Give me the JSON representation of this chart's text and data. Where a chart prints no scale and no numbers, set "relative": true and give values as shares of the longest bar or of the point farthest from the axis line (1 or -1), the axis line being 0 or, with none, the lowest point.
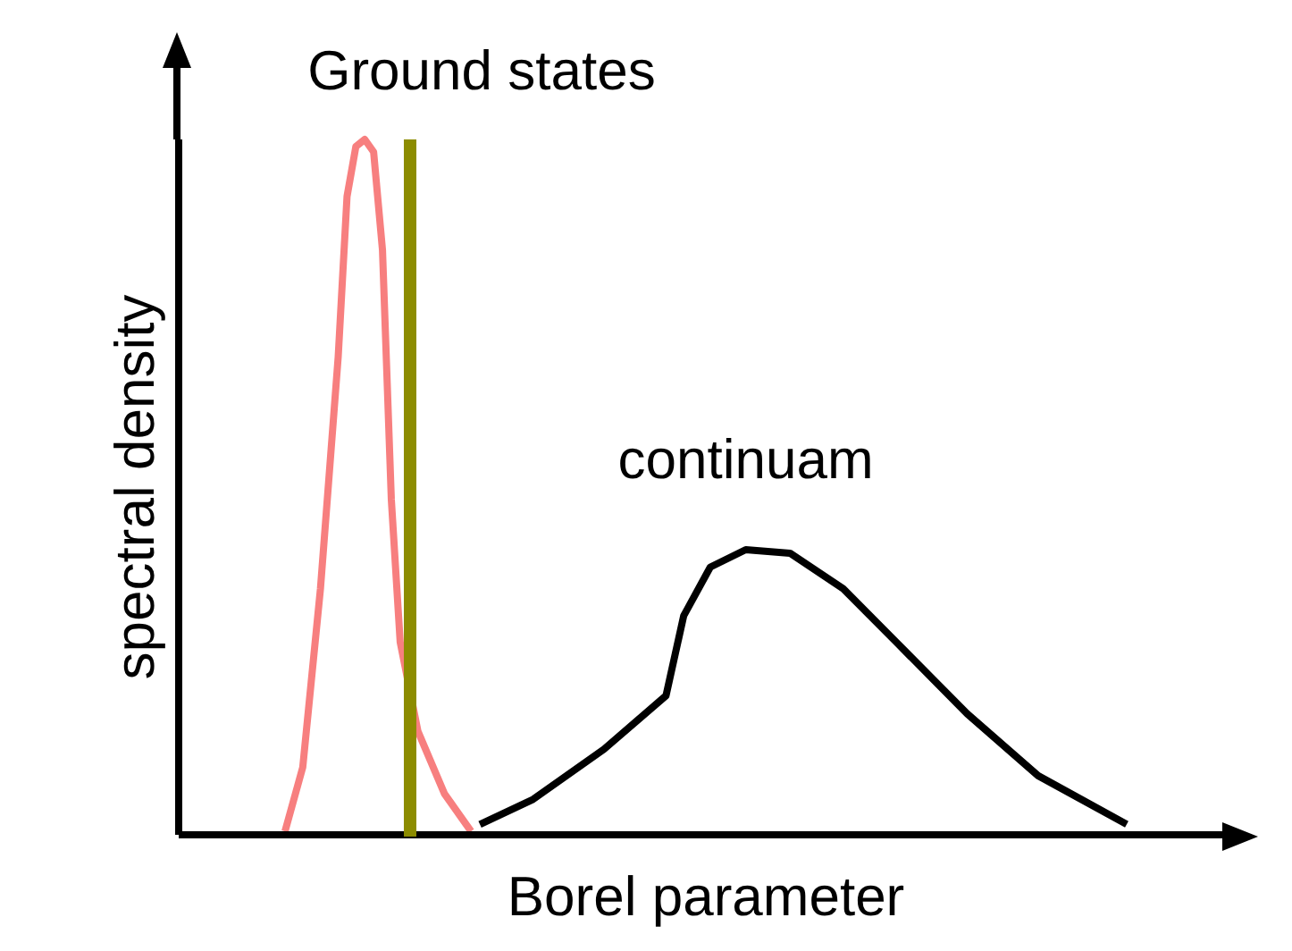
{
  "chart_data": {
    "type": "line",
    "relative": true,
    "xlabel": "Borel parameter",
    "ylabel": "spectral density",
    "categories": [
      null,
      null,
      null,
      null,
      null,
      null,
      null,
      null,
      null,
      null,
      null,
      null,
      null,
      null,
      null,
      null,
      null,
      null,
      null,
      null,
      null,
      null,
      null,
      null,
      null,
      null,
      null,
      null,
      null,
      null,
      null,
      null,
      null,
      null,
      null,
      null,
      null,
      null,
      null,
      null,
      null,
      null,
      null,
      null,
      null,
      null,
      null,
      null,
      null,
      null,
      null,
      null,
      null,
      null,
      null,
      null,
      null,
      null,
      null,
      null,
      null,
      null,
      null,
      null,
      null,
      null,
      null,
      null,
      null,
      null,
      null,
      null,
      null,
      null,
      null,
      null,
      null,
      null,
      null,
      null,
      null,
      null,
      null,
      null,
      null,
      null,
      null,
      null,
      null,
      null,
      null,
      null,
      null,
      null,
      null,
      null,
      null,
      null,
      null,
      null,
      null,
      null,
      null,
      null,
      null,
      null,
      null,
      null,
      null,
      null,
      null,
      null,
      null,
      null,
      null,
      null,
      null,
      null,
      null,
      null
    ],
    "series": [
      {
        "color": "#f77f7f",
        "values": [
          null,
          null,
          null,
          null,
          null,
          null,
          null,
          null,
          null,
          null,
          null,
          null,
          0.005,
          null,
          0.097,
          null,
          0.354,
          null,
          0.687,
          0.918,
          0.99,
          1,
          0.982,
          0.841,
          0.482,
          0.277,
          null,
          0.149,
          null,
          null,
          0.059,
          null,
          null,
          0.005,
          null,
          null,
          null,
          null,
          null,
          null,
          null,
          null,
          null,
          null,
          null,
          null,
          null,
          null,
          null,
          null,
          null,
          null,
          null,
          null,
          null,
          null,
          null,
          null,
          null,
          null,
          null,
          null,
          null,
          null,
          null,
          null,
          null,
          null,
          null,
          null,
          null,
          null,
          null,
          null,
          null,
          null,
          null,
          null,
          null,
          null,
          null,
          null,
          null,
          null,
          null,
          null,
          null,
          null,
          null,
          null,
          null,
          null,
          null,
          null,
          null,
          null,
          null,
          null,
          null,
          null,
          null,
          null,
          null,
          null,
          null,
          null,
          null,
          null,
          null,
          null,
          null,
          null,
          null,
          null,
          null,
          null,
          null,
          null,
          null,
          null
        ]
      },
      {
        "name": "continuam",
        "color": "#000000",
        "values": [
          null,
          null,
          null,
          null,
          null,
          null,
          null,
          null,
          null,
          null,
          null,
          null,
          null,
          null,
          null,
          null,
          null,
          null,
          null,
          null,
          null,
          null,
          null,
          null,
          null,
          null,
          null,
          null,
          null,
          null,
          null,
          null,
          null,
          null,
          0.015,
          null,
          null,
          null,
          null,
          null,
          0.051,
          null,
          null,
          null,
          null,
          null,
          null,
          null,
          0.123,
          null,
          null,
          null,
          null,
          null,
          null,
          0.2,
          null,
          0.315,
          null,
          null,
          0.385,
          null,
          null,
          null,
          0.41,
          null,
          null,
          null,
          null,
          0.405,
          null,
          null,
          null,
          null,
          null,
          0.354,
          null,
          null,
          null,
          null,
          null,
          0.277,
          null,
          null,
          null,
          null,
          null,
          null,
          null,
          0.174,
          null,
          null,
          null,
          null,
          null,
          null,
          null,
          0.085,
          null,
          null,
          null,
          null,
          null,
          null,
          null,
          null,
          null,
          0.015,
          null,
          null,
          null,
          null,
          null,
          null,
          null,
          null,
          null,
          null,
          null,
          null
        ]
      }
    ],
    "annotations": [
      "Ground states"
    ]
  }
}
